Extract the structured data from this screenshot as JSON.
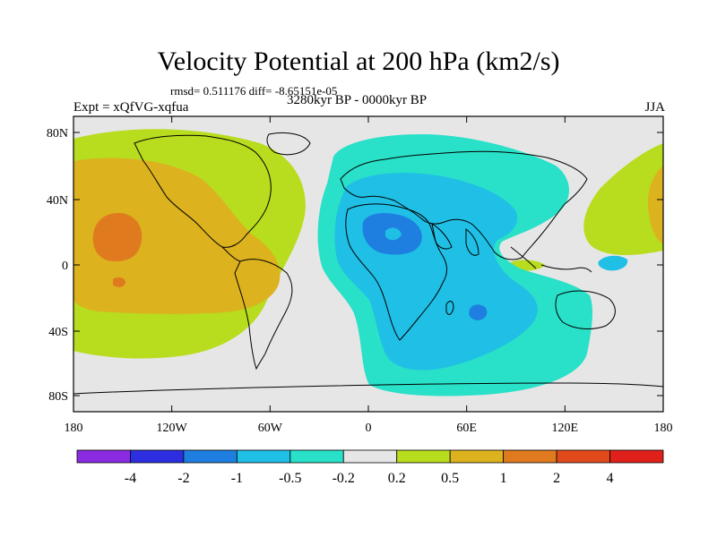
{
  "title": "Velocity Potential at 200 hPa (km2/s)",
  "stats": "rmsd= 0.511176 diff= -8.65151e-05",
  "experiment": "Expt = xQfVG-xqfua",
  "period": "3280kyr BP - 0000kyr BP",
  "season": "JJA",
  "axes": {
    "lat_labels": [
      "80N",
      "40N",
      "0",
      "40S",
      "80S"
    ],
    "lon_labels": [
      "180",
      "120W",
      "60W",
      "0",
      "60E",
      "120E",
      "180"
    ]
  },
  "colorbar": {
    "colors": [
      "#8a2be2",
      "#2c2ee0",
      "#1f7fe0",
      "#1fbfe6",
      "#29e0c8",
      "#e6e6e6",
      "#b8dc1e",
      "#dcb21e",
      "#e07a1e",
      "#e04a1a",
      "#e0201a"
    ],
    "labels": [
      "-4",
      "-2",
      "-1",
      "-0.5",
      "-0.2",
      "0.2",
      "0.5",
      "1",
      "2",
      "4"
    ]
  },
  "field_colors": {
    "background": "#e6e6e6",
    "pos_low": "#b8dc1e",
    "pos_mid": "#dcb21e",
    "pos_high": "#e07a1e",
    "neg_low": "#29e0c8",
    "neg_mid": "#1fbfe6",
    "neg_high": "#1f7fe0"
  }
}
